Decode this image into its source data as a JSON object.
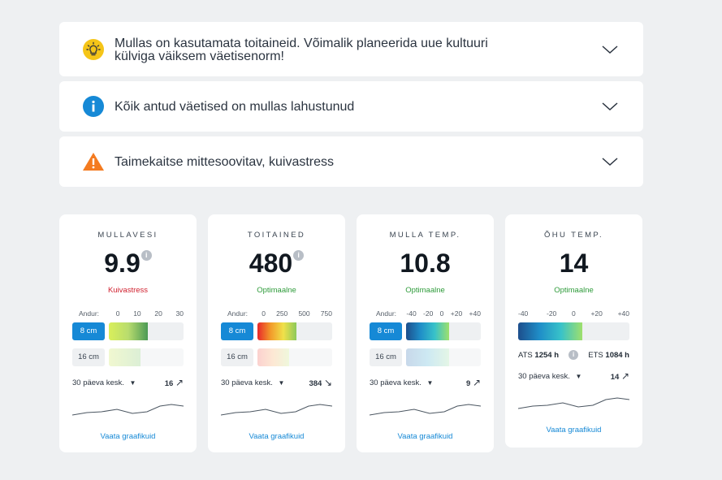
{
  "alerts": [
    {
      "text": "Mullas on kasutamata toitaineid. Võimalik planeerida uue kultuuri külviga väiksem väetisenorm!",
      "icon": "lightbulb-icon"
    },
    {
      "text": "Kõik antud väetised on mullas lahustunud",
      "icon": "info-icon"
    },
    {
      "text": "Taimekaitse mittesoovitav, kuivastress",
      "icon": "warning-icon"
    }
  ],
  "cards": [
    {
      "title": "MULLAVESI",
      "value": "9.9",
      "status": "Kuivastress",
      "status_color": "#d0212f",
      "scale_label": "Andur:",
      "scale": [
        "0",
        "10",
        "20",
        "30"
      ],
      "rows": [
        {
          "label": "8 cm",
          "level": 0.52
        },
        {
          "label": "16 cm",
          "level": 0.42
        }
      ],
      "avg_label": "30 päeva kesk.",
      "avg_value": "16",
      "trend": "↗",
      "link": "Vaata graafikuid"
    },
    {
      "title": "TOITAINED",
      "value": "480",
      "status": "Optimaalne",
      "status_color": "#2e9b3a",
      "scale_label": "Andur:",
      "scale": [
        "0",
        "250",
        "500",
        "750"
      ],
      "rows": [
        {
          "label": "8 cm",
          "level": 0.52
        },
        {
          "label": "16 cm",
          "level": 0.42
        }
      ],
      "avg_label": "30 päeva kesk.",
      "avg_value": "384",
      "trend": "↘",
      "link": "Vaata graafikuid"
    },
    {
      "title": "MULLA TEMP.",
      "value": "10.8",
      "status": "Optimaalne",
      "status_color": "#2e9b3a",
      "scale_label": "Andur:",
      "scale": [
        "-40",
        "-20",
        "0",
        "+20",
        "+40"
      ],
      "rows": [
        {
          "label": "8 cm",
          "level": 0.58
        },
        {
          "label": "16 cm",
          "level": 0.58
        }
      ],
      "avg_label": "30 päeva kesk.",
      "avg_value": "9",
      "trend": "↗",
      "link": "Vaata graafikuid"
    },
    {
      "title": "ÕHU TEMP.",
      "value": "14",
      "status": "Optimaalne",
      "status_color": "#2e9b3a",
      "scale": [
        "-40",
        "-20",
        "0",
        "+20",
        "+40"
      ],
      "level": 0.58,
      "ats_label": "ATS",
      "ats_value": "1254 h",
      "ets_label": "ETS",
      "ets_value": "1084 h",
      "avg_label": "30 päeva kesk.",
      "avg_value": "14",
      "trend": "↗",
      "link": "Vaata graafikuid"
    }
  ],
  "colors": {
    "accent": "#1689d6",
    "warning": "#f47b20",
    "bulb": "#f5c518"
  }
}
